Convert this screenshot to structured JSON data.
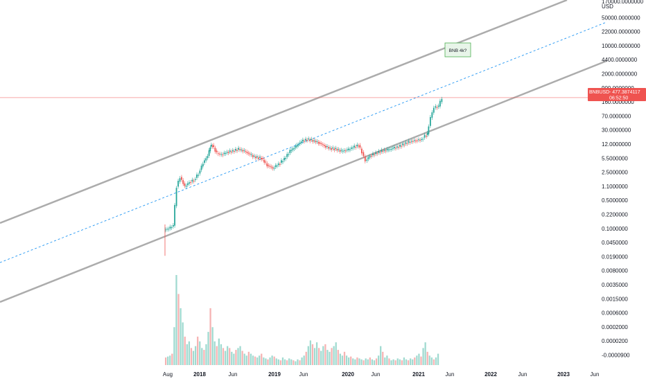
{
  "chart_data": {
    "type": "candlestick",
    "symbol": "BNBUSD",
    "currency": "USD",
    "scale": "log",
    "price_badge": {
      "symbol": "BNBUSD",
      "price": "477.3874117",
      "countdown": "06:52:50",
      "color": "#ef5350"
    },
    "annotation": {
      "text": "BNB 4k?"
    },
    "y_ticks": [
      "170000.0000000",
      "50000.0000000",
      "22000.0000000",
      "10000.0000000",
      "4400.0000000",
      "2000.0000000",
      "900.0000000",
      "160.0000000",
      "70.0000000",
      "30.0000000",
      "12.0000000",
      "5.5000000",
      "2.5000000",
      "1.1000000",
      "0.5000000",
      "0.2200000",
      "0.1000000",
      "0.0450000",
      "0.0190000",
      "0.0080000",
      "0.0035000",
      "0.0015000",
      "0.0006000",
      "0.0002000",
      "0.0000200",
      "-0.0000900"
    ],
    "x_ticks": [
      {
        "label": "Aug",
        "major": false
      },
      {
        "label": "2018",
        "major": true
      },
      {
        "label": "Jun",
        "major": false
      },
      {
        "label": "2019",
        "major": true
      },
      {
        "label": "Jun",
        "major": false
      },
      {
        "label": "2020",
        "major": true
      },
      {
        "label": "Jun",
        "major": false
      },
      {
        "label": "2021",
        "major": true
      },
      {
        "label": "Jun",
        "major": false
      },
      {
        "label": "2022",
        "major": true
      },
      {
        "label": "Jun",
        "major": false
      },
      {
        "label": "2023",
        "major": true
      },
      {
        "label": "Jun",
        "major": false
      }
    ],
    "price_series": [
      {
        "t": 0,
        "close": 0.1
      },
      {
        "t": 0.4,
        "close": 0.12
      },
      {
        "t": 0.8,
        "close": 1.5
      },
      {
        "t": 1.1,
        "close": 2.8
      },
      {
        "t": 1.4,
        "close": 1.5
      },
      {
        "t": 1.8,
        "close": 2.0
      },
      {
        "t": 2.2,
        "close": 2.3
      },
      {
        "t": 2.6,
        "close": 3.5
      },
      {
        "t": 3.0,
        "close": 7.0
      },
      {
        "t": 3.4,
        "close": 11.0
      },
      {
        "t": 3.8,
        "close": 20.0
      },
      {
        "t": 4.0,
        "close": 22.0
      },
      {
        "t": 4.2,
        "close": 13.0
      },
      {
        "t": 4.6,
        "close": 12.0
      },
      {
        "t": 5.0,
        "close": 14.0
      },
      {
        "t": 5.5,
        "close": 15.0
      },
      {
        "t": 6.0,
        "close": 17.0
      },
      {
        "t": 6.5,
        "close": 15.0
      },
      {
        "t": 7.0,
        "close": 12.0
      },
      {
        "t": 7.5,
        "close": 10.0
      },
      {
        "t": 8.0,
        "close": 9.5
      },
      {
        "t": 8.5,
        "close": 6.0
      },
      {
        "t": 9.0,
        "close": 5.0
      },
      {
        "t": 9.5,
        "close": 6.5
      },
      {
        "t": 10.0,
        "close": 9.0
      },
      {
        "t": 10.5,
        "close": 15.0
      },
      {
        "t": 11.0,
        "close": 20.0
      },
      {
        "t": 11.5,
        "close": 28.0
      },
      {
        "t": 12.0,
        "close": 32.0
      },
      {
        "t": 12.5,
        "close": 30.0
      },
      {
        "t": 13.0,
        "close": 26.0
      },
      {
        "t": 13.5,
        "close": 21.0
      },
      {
        "t": 14.0,
        "close": 18.0
      },
      {
        "t": 14.5,
        "close": 17.0
      },
      {
        "t": 15.0,
        "close": 15.0
      },
      {
        "t": 15.5,
        "close": 16.0
      },
      {
        "t": 16.0,
        "close": 19.0
      },
      {
        "t": 16.5,
        "close": 22.0
      },
      {
        "t": 17.0,
        "close": 14.0
      },
      {
        "t": 17.3,
        "close": 8.0
      },
      {
        "t": 17.6,
        "close": 11.0
      },
      {
        "t": 18.0,
        "close": 13.0
      },
      {
        "t": 18.5,
        "close": 15.0
      },
      {
        "t": 19.0,
        "close": 16.0
      },
      {
        "t": 19.5,
        "close": 18.0
      },
      {
        "t": 20.0,
        "close": 20.0
      },
      {
        "t": 20.5,
        "close": 24.0
      },
      {
        "t": 21.0,
        "close": 28.0
      },
      {
        "t": 21.5,
        "close": 30.0
      },
      {
        "t": 22.0,
        "close": 32.0
      },
      {
        "t": 22.5,
        "close": 40.0
      },
      {
        "t": 22.8,
        "close": 45.0
      },
      {
        "t": 23.0,
        "close": 130.0
      },
      {
        "t": 23.3,
        "close": 250.0
      },
      {
        "t": 23.6,
        "close": 270.0
      },
      {
        "t": 24.0,
        "close": 477.0
      }
    ],
    "volume_series": [
      8,
      9,
      10,
      12,
      40,
      95,
      75,
      60,
      45,
      30,
      22,
      25,
      18,
      15,
      20,
      30,
      25,
      18,
      16,
      22,
      35,
      60,
      40,
      25,
      20,
      28,
      22,
      18,
      15,
      20,
      18,
      14,
      12,
      16,
      18,
      20,
      15,
      12,
      10,
      14,
      12,
      10,
      9,
      8,
      10,
      12,
      8,
      7,
      6,
      8,
      10,
      9,
      7,
      6,
      5,
      8,
      6,
      5,
      7,
      6,
      5,
      4,
      6,
      5,
      8,
      10,
      14,
      20,
      26,
      22,
      18,
      24,
      18,
      15,
      20,
      22,
      16,
      14,
      18,
      20,
      24,
      16,
      12,
      10,
      14,
      10,
      8,
      9,
      7,
      6,
      8,
      7,
      6,
      5,
      7,
      6,
      8,
      6,
      5,
      7,
      10,
      20,
      14,
      8,
      10,
      7,
      5,
      6,
      5,
      7,
      6,
      5,
      8,
      6,
      5,
      7,
      6,
      8,
      10,
      12,
      9,
      18,
      24,
      14,
      10,
      8,
      6,
      8,
      12
    ]
  }
}
